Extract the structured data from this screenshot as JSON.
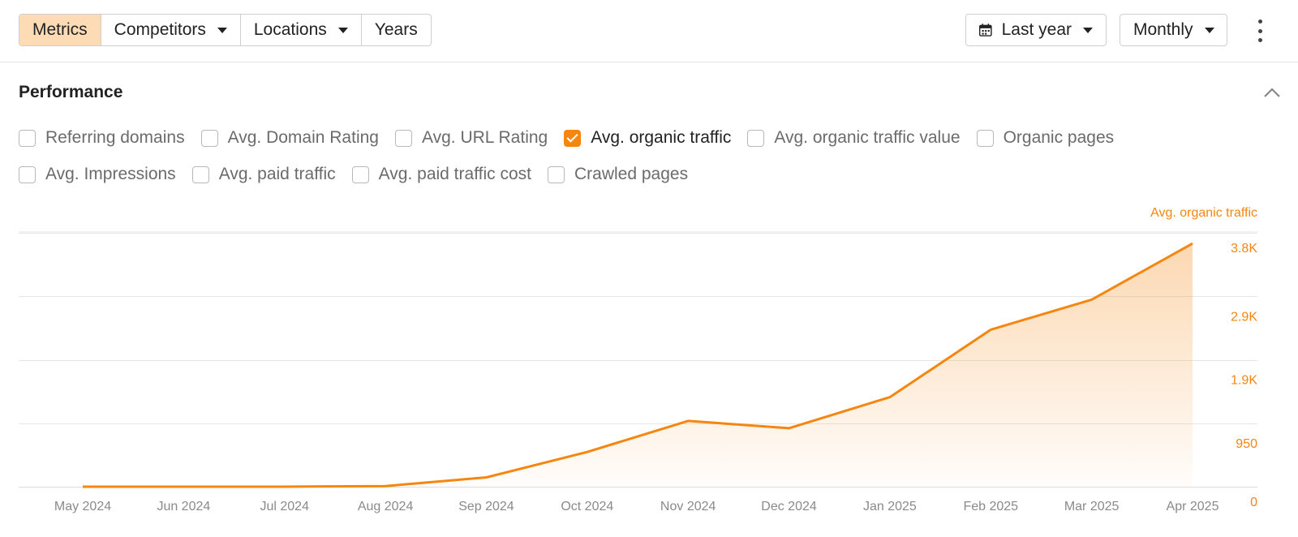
{
  "toolbar": {
    "tabs": [
      {
        "label": "Metrics",
        "active": true,
        "dropdown": false
      },
      {
        "label": "Competitors",
        "active": false,
        "dropdown": true
      },
      {
        "label": "Locations",
        "active": false,
        "dropdown": true
      },
      {
        "label": "Years",
        "active": false,
        "dropdown": false
      }
    ],
    "period": {
      "label": "Last year",
      "icon": "calendar-icon"
    },
    "granularity": {
      "label": "Monthly"
    },
    "more_icon": "more-vertical-icon"
  },
  "section": {
    "title": "Performance",
    "collapse_icon": "chevron-up-icon"
  },
  "metrics_row1": [
    {
      "label": "Referring domains",
      "checked": false
    },
    {
      "label": "Avg. Domain Rating",
      "checked": false
    },
    {
      "label": "Avg. URL Rating",
      "checked": false
    },
    {
      "label": "Avg. organic traffic",
      "checked": true
    },
    {
      "label": "Avg. organic traffic value",
      "checked": false
    },
    {
      "label": "Organic pages",
      "checked": false
    }
  ],
  "metrics_row2": [
    {
      "label": "Avg. Impressions",
      "checked": false
    },
    {
      "label": "Avg. paid traffic",
      "checked": false
    },
    {
      "label": "Avg. paid traffic cost",
      "checked": false
    },
    {
      "label": "Crawled pages",
      "checked": false
    }
  ],
  "colors": {
    "accent": "#f5860f",
    "active_tab": "#fddcb5",
    "grid": "#e6e6e6"
  },
  "chart_data": {
    "type": "area",
    "series": [
      {
        "name": "Avg. organic traffic",
        "values": [
          0,
          0,
          0,
          10,
          140,
          520,
          985,
          875,
          1340,
          2350,
          2800,
          3640
        ]
      }
    ],
    "x": [
      "May 2024",
      "Jun 2024",
      "Jul 2024",
      "Aug 2024",
      "Sep 2024",
      "Oct 2024",
      "Nov 2024",
      "Dec 2024",
      "Jan 2025",
      "Feb 2025",
      "Mar 2025",
      "Apr 2025"
    ],
    "y_ticks": [
      0,
      950,
      1900,
      2850,
      3800
    ],
    "y_tick_labels": [
      "0",
      "950",
      "1.9K",
      "2.9K",
      "3.8K"
    ],
    "ylim": [
      0,
      3800
    ],
    "ylabel": "Avg. organic traffic",
    "axis_position": "right",
    "grid": true
  }
}
